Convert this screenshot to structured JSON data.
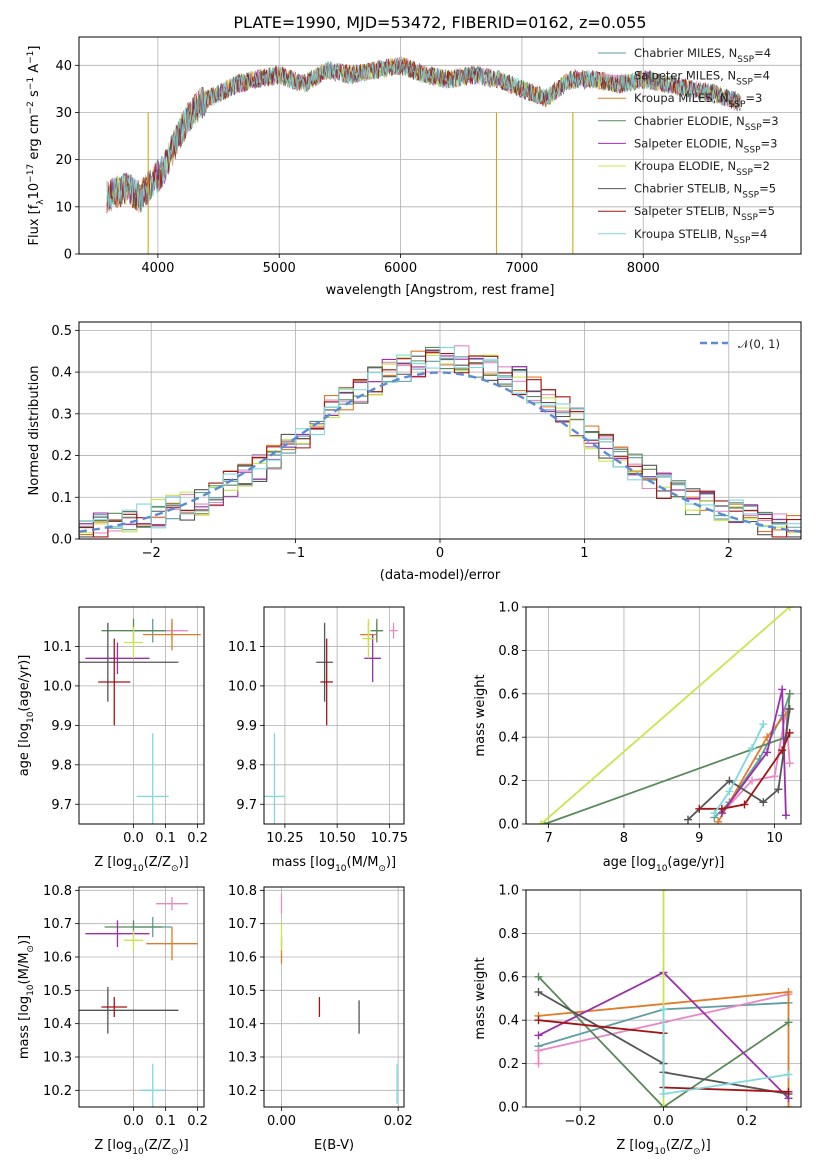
{
  "figure": {
    "title": "PLATE=1990, MJD=53472, FIBERID=0162, z=0.055"
  },
  "models": [
    {
      "name": "Chabrier MILES, N",
      "n": "4",
      "color": "#5f9ea0"
    },
    {
      "name": "Salpeter MILES, N",
      "n": "4",
      "color": "#e889c7"
    },
    {
      "name": "Kroupa MILES, N",
      "n": "3",
      "color": "#e07b27"
    },
    {
      "name": "Chabrier ELODIE, N",
      "n": "3",
      "color": "#5a8a5a"
    },
    {
      "name": "Salpeter ELODIE, N",
      "n": "3",
      "color": "#9b2fae"
    },
    {
      "name": "Kroupa ELODIE, N",
      "n": "2",
      "color": "#c8e64a"
    },
    {
      "name": "Chabrier STELIB, N",
      "n": "5",
      "color": "#555555"
    },
    {
      "name": "Salpeter STELIB, N",
      "n": "5",
      "color": "#a31515"
    },
    {
      "name": "Kroupa STELIB, N",
      "n": "4",
      "color": "#7ed9df"
    }
  ],
  "chart_data": [
    {
      "id": "spectrum",
      "type": "line",
      "xlabel": "wavelength [Angstrom, rest frame]",
      "ylabel": "Flux [f",
      "ylabel_parts": [
        "Flux [f",
        "λ",
        "10",
        "−17",
        " erg cm",
        "−2",
        " s",
        "−1",
        " A",
        "−1",
        "]"
      ],
      "xlim": [
        3350,
        9300
      ],
      "ylim": [
        0,
        46
      ],
      "xticks": [
        4000,
        5000,
        6000,
        7000,
        8000
      ],
      "yticks": [
        0,
        10,
        20,
        30,
        40
      ],
      "continuum": {
        "x": [
          3580,
          3650,
          3750,
          3850,
          3950,
          4050,
          4150,
          4250,
          4350,
          4500,
          4650,
          4800,
          5000,
          5200,
          5400,
          5600,
          5800,
          6000,
          6200,
          6400,
          6600,
          6800,
          7000,
          7200,
          7400,
          7600,
          7800,
          8000,
          8200,
          8400,
          8600,
          8800
        ],
        "y": [
          12,
          13,
          14,
          12,
          15,
          18,
          24,
          29,
          32,
          34,
          36,
          37,
          38,
          36,
          39,
          38,
          39,
          40,
          38,
          37,
          38,
          37,
          35,
          33,
          37,
          37,
          36,
          37,
          36,
          35,
          34,
          32
        ]
      },
      "legend_position": "upper right"
    },
    {
      "id": "residuals",
      "type": "step",
      "xlabel": "(data-model)/error",
      "ylabel": "Normed distribution",
      "xlim": [
        -2.5,
        2.5
      ],
      "ylim": [
        0,
        0.52
      ],
      "xticks": [
        -2,
        -1,
        0,
        1,
        2
      ],
      "xticklabels": [
        "−2",
        "−1",
        "0",
        "1",
        "2"
      ],
      "yticks": [
        0.0,
        0.1,
        0.2,
        0.3,
        0.4,
        0.5
      ],
      "yticklabels": [
        "0.0",
        "0.1",
        "0.2",
        "0.3",
        "0.4",
        "0.5"
      ],
      "bins": [
        -2.5,
        -2.4,
        -2.3,
        -2.2,
        -2.1,
        -2.0,
        -1.9,
        -1.8,
        -1.7,
        -1.6,
        -1.5,
        -1.4,
        -1.3,
        -1.2,
        -1.1,
        -1.0,
        -0.9,
        -0.8,
        -0.7,
        -0.6,
        -0.5,
        -0.4,
        -0.3,
        -0.2,
        -0.1,
        0.0,
        0.1,
        0.2,
        0.3,
        0.4,
        0.5,
        0.6,
        0.7,
        0.8,
        0.9,
        1.0,
        1.1,
        1.2,
        1.3,
        1.4,
        1.5,
        1.6,
        1.7,
        1.8,
        1.9,
        2.0,
        2.1,
        2.2,
        2.3,
        2.4,
        2.5
      ],
      "hist_base": [
        0.02,
        0.03,
        0.04,
        0.05,
        0.05,
        0.06,
        0.07,
        0.08,
        0.09,
        0.11,
        0.13,
        0.15,
        0.17,
        0.2,
        0.22,
        0.25,
        0.28,
        0.31,
        0.34,
        0.36,
        0.38,
        0.4,
        0.41,
        0.42,
        0.43,
        0.43,
        0.43,
        0.42,
        0.41,
        0.4,
        0.38,
        0.36,
        0.34,
        0.31,
        0.28,
        0.25,
        0.22,
        0.2,
        0.17,
        0.15,
        0.13,
        0.11,
        0.09,
        0.08,
        0.07,
        0.06,
        0.05,
        0.04,
        0.03,
        0.03
      ],
      "gaussian_label": "𝒩(0, 1)",
      "gaussian_color": "#5b8bd4",
      "legend_position": "upper right"
    },
    {
      "id": "age-vs-z",
      "type": "scatter",
      "xlabel": "Z [log",
      "xlabel_parts": [
        "Z [log",
        "10",
        "(Z/Z",
        "⊙",
        ")]"
      ],
      "ylabel_parts": [
        "age  [log",
        "10",
        "(age/yr)]"
      ],
      "xlim": [
        -0.17,
        0.22
      ],
      "ylim": [
        9.65,
        10.2
      ],
      "xticks": [
        0.0,
        0.1,
        0.2
      ],
      "xticklabels": [
        "0.0",
        "0.1",
        "0.2"
      ],
      "yticks": [
        9.7,
        9.8,
        9.9,
        10.0,
        10.1
      ],
      "yticklabels": [
        "9.7",
        "9.8",
        "9.9",
        "10.0",
        "10.1"
      ],
      "points": [
        {
          "x": 0.06,
          "y": 10.14,
          "xe": 0.07,
          "ye": 0.03,
          "c": 0
        },
        {
          "x": 0.12,
          "y": 10.14,
          "xe": 0.05,
          "ye": 0.02,
          "c": 1
        },
        {
          "x": 0.12,
          "y": 10.13,
          "xe": 0.09,
          "ye": 0.04,
          "c": 2
        },
        {
          "x": 0.0,
          "y": 10.14,
          "xe": 0.1,
          "ye": 0.03,
          "c": 3
        },
        {
          "x": -0.05,
          "y": 10.07,
          "xe": 0.1,
          "ye": 0.04,
          "c": 4
        },
        {
          "x": 0.0,
          "y": 10.11,
          "xe": 0.03,
          "ye": 0.04,
          "c": 5
        },
        {
          "x": -0.08,
          "y": 10.06,
          "xe": 0.22,
          "ye": 0.1,
          "c": 6
        },
        {
          "x": -0.06,
          "y": 10.01,
          "xe": 0.05,
          "ye": 0.11,
          "c": 7
        },
        {
          "x": 0.06,
          "y": 9.72,
          "xe": 0.05,
          "ye": 0.16,
          "c": 8
        }
      ]
    },
    {
      "id": "age-vs-mass",
      "type": "scatter",
      "xlabel_parts": [
        "mass [log",
        "10",
        "(M/M",
        "⊙",
        ")]"
      ],
      "xlim": [
        10.15,
        10.82
      ],
      "ylim": [
        9.65,
        10.2
      ],
      "xticks": [
        10.25,
        10.5,
        10.75
      ],
      "xticklabels": [
        "10.25",
        "10.50",
        "10.75"
      ],
      "yticks": [
        9.7,
        9.8,
        9.9,
        10.0,
        10.1
      ],
      "yticklabels": [
        "9.7",
        "9.8",
        "9.9",
        "10.0",
        "10.1"
      ],
      "points": [
        {
          "x": 10.69,
          "y": 10.14,
          "xe": 0.03,
          "ye": 0.02,
          "c": 0
        },
        {
          "x": 10.77,
          "y": 10.14,
          "xe": 0.02,
          "ye": 0.02,
          "c": 1
        },
        {
          "x": 10.65,
          "y": 10.13,
          "xe": 0.04,
          "ye": 0.03,
          "c": 2
        },
        {
          "x": 10.69,
          "y": 10.14,
          "xe": 0.03,
          "ye": 0.03,
          "c": 3
        },
        {
          "x": 10.67,
          "y": 10.07,
          "xe": 0.04,
          "ye": 0.06,
          "c": 4
        },
        {
          "x": 10.65,
          "y": 10.12,
          "xe": 0.03,
          "ye": 0.05,
          "c": 5
        },
        {
          "x": 10.44,
          "y": 10.06,
          "xe": 0.04,
          "ye": 0.1,
          "c": 6
        },
        {
          "x": 10.45,
          "y": 10.01,
          "xe": 0.03,
          "ye": 0.11,
          "c": 7
        },
        {
          "x": 10.2,
          "y": 9.72,
          "xe": 0.05,
          "ye": 0.16,
          "c": 8
        }
      ]
    },
    {
      "id": "weight-vs-age",
      "type": "line",
      "xlabel_parts": [
        "age  [log",
        "10",
        "(age/yr)]"
      ],
      "ylabel": "mass weight",
      "xlim": [
        6.7,
        10.35
      ],
      "ylim": [
        0,
        1.0
      ],
      "xticks": [
        7,
        8,
        9,
        10
      ],
      "xticklabels": [
        "7",
        "8",
        "9",
        "10"
      ],
      "yticks": [
        0.0,
        0.2,
        0.4,
        0.6,
        0.8,
        1.0
      ],
      "yticklabels": [
        "0.0",
        "0.2",
        "0.4",
        "0.6",
        "0.8",
        "1.0"
      ],
      "series": [
        {
          "c": 0,
          "x": [
            9.2,
            9.4,
            9.8,
            10.1,
            10.2
          ],
          "y": [
            0.03,
            0.1,
            0.3,
            0.5,
            0.6
          ]
        },
        {
          "c": 1,
          "x": [
            9.3,
            9.7,
            10.0,
            10.15,
            10.2
          ],
          "y": [
            0.05,
            0.2,
            0.22,
            0.52,
            0.28
          ]
        },
        {
          "c": 2,
          "x": [
            9.25,
            9.9,
            10.2
          ],
          "y": [
            0.01,
            0.4,
            0.53
          ]
        },
        {
          "c": 3,
          "x": [
            6.95,
            10.15,
            10.2
          ],
          "y": [
            0.0,
            0.4,
            0.6
          ]
        },
        {
          "c": 4,
          "x": [
            9.3,
            9.9,
            10.1,
            10.15
          ],
          "y": [
            0.05,
            0.33,
            0.62,
            0.04
          ]
        },
        {
          "c": 5,
          "x": [
            6.9,
            10.2
          ],
          "y": [
            0.0,
            1.0
          ]
        },
        {
          "c": 6,
          "x": [
            8.85,
            9.4,
            9.85,
            10.05,
            10.2
          ],
          "y": [
            0.02,
            0.2,
            0.1,
            0.16,
            0.53
          ]
        },
        {
          "c": 7,
          "x": [
            9.0,
            9.3,
            9.6,
            10.1,
            10.2
          ],
          "y": [
            0.07,
            0.07,
            0.09,
            0.34,
            0.42
          ]
        },
        {
          "c": 8,
          "x": [
            9.2,
            9.4,
            9.7,
            9.85
          ],
          "y": [
            0.05,
            0.15,
            0.35,
            0.46
          ]
        }
      ]
    },
    {
      "id": "mass-vs-z",
      "type": "scatter",
      "xlabel_parts": [
        "Z [log",
        "10",
        "(Z/Z",
        "⊙",
        ")]"
      ],
      "ylabel_parts": [
        "mass [log",
        "10",
        "(M/M",
        "⊙",
        ")]"
      ],
      "xlim": [
        -0.17,
        0.22
      ],
      "ylim": [
        10.15,
        10.81
      ],
      "xticks": [
        0.0,
        0.1,
        0.2
      ],
      "xticklabels": [
        "0.0",
        "0.1",
        "0.2"
      ],
      "yticks": [
        10.2,
        10.3,
        10.4,
        10.5,
        10.6,
        10.7,
        10.8
      ],
      "yticklabels": [
        "10.2",
        "10.3",
        "10.4",
        "10.5",
        "10.6",
        "10.7",
        "10.8"
      ],
      "points": [
        {
          "x": 0.06,
          "y": 10.69,
          "xe": 0.06,
          "ye": 0.03,
          "c": 0
        },
        {
          "x": 0.12,
          "y": 10.76,
          "xe": 0.05,
          "ye": 0.02,
          "c": 1
        },
        {
          "x": 0.12,
          "y": 10.64,
          "xe": 0.08,
          "ye": 0.05,
          "c": 2
        },
        {
          "x": 0.0,
          "y": 10.69,
          "xe": 0.09,
          "ye": 0.02,
          "c": 3
        },
        {
          "x": -0.05,
          "y": 10.67,
          "xe": 0.1,
          "ye": 0.04,
          "c": 4
        },
        {
          "x": 0.0,
          "y": 10.65,
          "xe": 0.03,
          "ye": 0.03,
          "c": 5
        },
        {
          "x": -0.08,
          "y": 10.44,
          "xe": 0.22,
          "ye": 0.07,
          "c": 6
        },
        {
          "x": -0.06,
          "y": 10.45,
          "xe": 0.04,
          "ye": 0.03,
          "c": 7
        },
        {
          "x": 0.06,
          "y": 10.2,
          "xe": 0.04,
          "ye": 0.08,
          "c": 8
        }
      ]
    },
    {
      "id": "mass-vs-ebv",
      "type": "scatter",
      "xlabel": "E(B-V)",
      "xlim": [
        -0.003,
        0.021
      ],
      "ylim": [
        10.15,
        10.81
      ],
      "xticks": [
        0.0,
        0.02
      ],
      "xticklabels": [
        "0.00",
        "0.02"
      ],
      "yticks": [
        10.2,
        10.3,
        10.4,
        10.5,
        10.6,
        10.7,
        10.8
      ],
      "yticklabels": [
        "10.2",
        "10.3",
        "10.4",
        "10.5",
        "10.6",
        "10.7",
        "10.8"
      ],
      "points": [
        {
          "x": 0.0,
          "y": 10.76,
          "xe": 0.0,
          "ye": 0.03,
          "c": 1
        },
        {
          "x": 0.0,
          "y": 10.62,
          "xe": 0.0,
          "ye": 0.04,
          "c": 2
        },
        {
          "x": 0.0,
          "y": 10.66,
          "xe": 0.0,
          "ye": 0.04,
          "c": 5
        },
        {
          "x": 0.0065,
          "y": 10.45,
          "xe": 0.0,
          "ye": 0.03,
          "c": 7
        },
        {
          "x": 0.0133,
          "y": 10.42,
          "xe": 0.0,
          "ye": 0.05,
          "c": 6
        },
        {
          "x": 0.0198,
          "y": 10.22,
          "xe": 0.0,
          "ye": 0.06,
          "c": 8
        }
      ]
    },
    {
      "id": "weight-vs-z",
      "type": "line",
      "xlabel_parts": [
        "Z [log",
        "10",
        "(Z/Z",
        "⊙",
        ")]"
      ],
      "ylabel": "mass weight",
      "xlim": [
        -0.33,
        0.33
      ],
      "ylim": [
        0,
        1.0
      ],
      "xticks": [
        -0.2,
        0.0,
        0.2
      ],
      "xticklabels": [
        "−0.2",
        "0.0",
        "0.2"
      ],
      "yticks": [
        0.0,
        0.2,
        0.4,
        0.6,
        0.8,
        1.0
      ],
      "yticklabels": [
        "0.0",
        "0.2",
        "0.4",
        "0.6",
        "0.8",
        "1.0"
      ],
      "series": [
        {
          "c": 0,
          "x": [
            -0.3,
            0.0,
            0.3
          ],
          "y": [
            0.28,
            0.45,
            0.48
          ]
        },
        {
          "c": 1,
          "x": [
            -0.3,
            -0.3,
            0.0,
            0.3
          ],
          "y": [
            0.2,
            0.26,
            0.39,
            0.52
          ]
        },
        {
          "c": 2,
          "x": [
            -0.3,
            0.3,
            0.3
          ],
          "y": [
            0.42,
            0.53,
            0.0
          ]
        },
        {
          "c": 3,
          "x": [
            -0.3,
            0.0,
            0.3
          ],
          "y": [
            0.6,
            0.0,
            0.39
          ]
        },
        {
          "c": 4,
          "x": [
            -0.3,
            0.0,
            0.3
          ],
          "y": [
            0.33,
            0.62,
            0.04
          ]
        },
        {
          "c": 5,
          "x": [
            0.0,
            0.0
          ],
          "y": [
            0.0,
            1.0
          ]
        },
        {
          "c": 6,
          "x": [
            -0.3,
            0.0,
            0.0,
            0.3
          ],
          "y": [
            0.53,
            0.2,
            0.16,
            0.06
          ]
        },
        {
          "c": 7,
          "x": [
            -0.3,
            0.0,
            0.0,
            0.3
          ],
          "y": [
            0.4,
            0.34,
            0.09,
            0.07
          ]
        },
        {
          "c": 8,
          "x": [
            0.0,
            0.0,
            0.3
          ],
          "y": [
            0.45,
            0.06,
            0.15
          ]
        }
      ]
    }
  ]
}
